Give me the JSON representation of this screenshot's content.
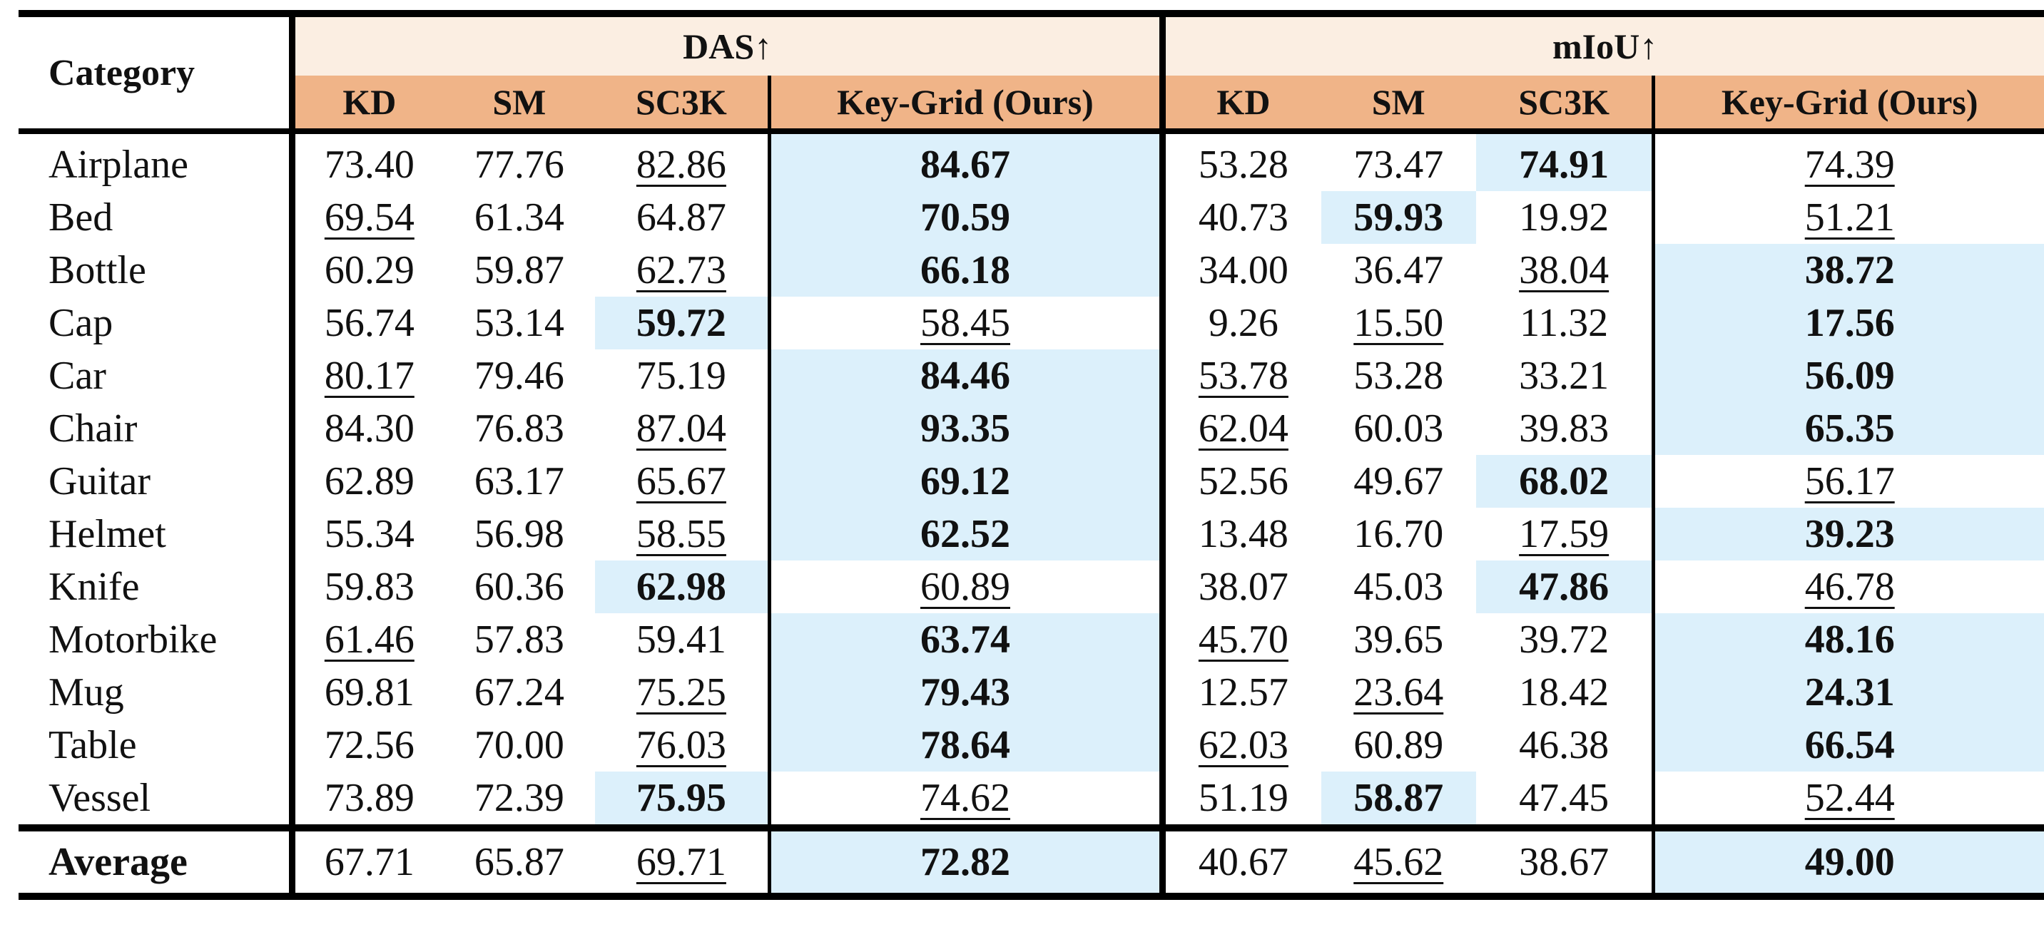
{
  "table": {
    "category_header": "Category",
    "group_das": "DAS↑",
    "group_miou": "mIoU↑",
    "methods": [
      "KD",
      "SM",
      "SC3K",
      "Key-Grid (Ours)"
    ],
    "rows": [
      {
        "category": "Airplane",
        "das": [
          "73.40",
          "77.76",
          "82.86",
          "84.67"
        ],
        "miou": [
          "53.28",
          "73.47",
          "74.91",
          "74.39"
        ]
      },
      {
        "category": "Bed",
        "das": [
          "69.54",
          "61.34",
          "64.87",
          "70.59"
        ],
        "miou": [
          "40.73",
          "59.93",
          "19.92",
          "51.21"
        ]
      },
      {
        "category": "Bottle",
        "das": [
          "60.29",
          "59.87",
          "62.73",
          "66.18"
        ],
        "miou": [
          "34.00",
          "36.47",
          "38.04",
          "38.72"
        ]
      },
      {
        "category": "Cap",
        "das": [
          "56.74",
          "53.14",
          "59.72",
          "58.45"
        ],
        "miou": [
          "9.26",
          "15.50",
          "11.32",
          "17.56"
        ]
      },
      {
        "category": "Car",
        "das": [
          "80.17",
          "79.46",
          "75.19",
          "84.46"
        ],
        "miou": [
          "53.78",
          "53.28",
          "33.21",
          "56.09"
        ]
      },
      {
        "category": "Chair",
        "das": [
          "84.30",
          "76.83",
          "87.04",
          "93.35"
        ],
        "miou": [
          "62.04",
          "60.03",
          "39.83",
          "65.35"
        ]
      },
      {
        "category": "Guitar",
        "das": [
          "62.89",
          "63.17",
          "65.67",
          "69.12"
        ],
        "miou": [
          "52.56",
          "49.67",
          "68.02",
          "56.17"
        ]
      },
      {
        "category": "Helmet",
        "das": [
          "55.34",
          "56.98",
          "58.55",
          "62.52"
        ],
        "miou": [
          "13.48",
          "16.70",
          "17.59",
          "39.23"
        ]
      },
      {
        "category": "Knife",
        "das": [
          "59.83",
          "60.36",
          "62.98",
          "60.89"
        ],
        "miou": [
          "38.07",
          "45.03",
          "47.86",
          "46.78"
        ]
      },
      {
        "category": "Motorbike",
        "das": [
          "61.46",
          "57.83",
          "59.41",
          "63.74"
        ],
        "miou": [
          "45.70",
          "39.65",
          "39.72",
          "48.16"
        ]
      },
      {
        "category": "Mug",
        "das": [
          "69.81",
          "67.24",
          "75.25",
          "79.43"
        ],
        "miou": [
          "12.57",
          "23.64",
          "18.42",
          "24.31"
        ]
      },
      {
        "category": "Table",
        "das": [
          "72.56",
          "70.00",
          "76.03",
          "78.64"
        ],
        "miou": [
          "62.03",
          "60.89",
          "46.38",
          "66.54"
        ]
      },
      {
        "category": "Vessel",
        "das": [
          "73.89",
          "72.39",
          "75.95",
          "74.62"
        ],
        "miou": [
          "51.19",
          "58.87",
          "47.45",
          "52.44"
        ]
      }
    ],
    "average": {
      "category": "Average",
      "das": [
        "67.71",
        "65.87",
        "69.71",
        "72.82"
      ],
      "miou": [
        "40.67",
        "45.62",
        "38.67",
        "49.00"
      ]
    },
    "highlight_color": "#dcf0fb",
    "header_top_color": "#fbeee2",
    "header_method_color": "#f0b488"
  }
}
